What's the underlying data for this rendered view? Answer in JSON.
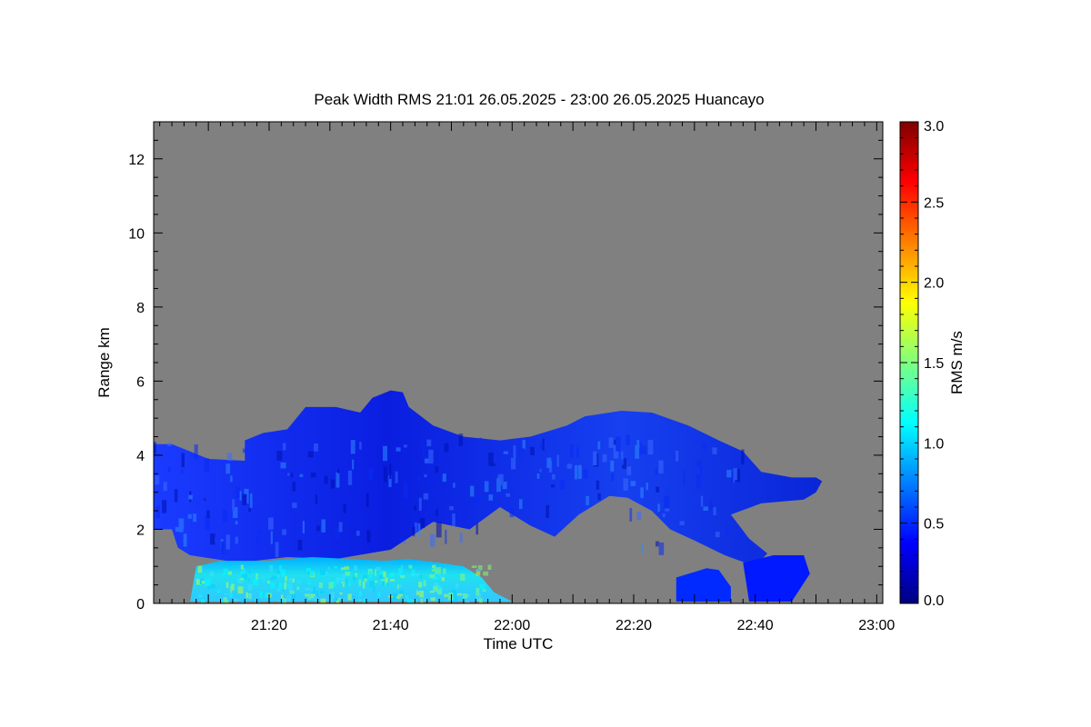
{
  "chart_data": {
    "type": "heatmap",
    "title": "Peak Width RMS   21:01 26.05.2025 - 23:00 26.05.2025 Huancayo",
    "xlabel": "Time UTC",
    "ylabel": "Range km",
    "xlim_minutes_utc": [
      1261,
      1381
    ],
    "ylim": [
      0,
      13
    ],
    "x_ticks": [
      {
        "value": 1280,
        "label": "21:20"
      },
      {
        "value": 1300,
        "label": "21:40"
      },
      {
        "value": 1320,
        "label": "22:00"
      },
      {
        "value": 1340,
        "label": "22:20"
      },
      {
        "value": 1360,
        "label": "22:40"
      },
      {
        "value": 1380,
        "label": "23:00"
      }
    ],
    "y_ticks": [
      {
        "value": 0,
        "label": "0"
      },
      {
        "value": 2,
        "label": "2"
      },
      {
        "value": 4,
        "label": "4"
      },
      {
        "value": 6,
        "label": "6"
      },
      {
        "value": 8,
        "label": "8"
      },
      {
        "value": 10,
        "label": "10"
      },
      {
        "value": 12,
        "label": "12"
      }
    ],
    "colorbar": {
      "label": "RMS m/s",
      "range": [
        0,
        3
      ],
      "ticks": [
        {
          "value": 0.0,
          "label": "0.0"
        },
        {
          "value": 0.5,
          "label": "0.5"
        },
        {
          "value": 1.0,
          "label": "1.0"
        },
        {
          "value": 1.5,
          "label": "1.5"
        },
        {
          "value": 2.0,
          "label": "2.0"
        },
        {
          "value": 2.5,
          "label": "2.5"
        },
        {
          "value": 3.0,
          "label": "3.0"
        }
      ],
      "colormap": [
        "#00007f",
        "#0000ff",
        "#007fff",
        "#00ffff",
        "#7fff7f",
        "#ffff00",
        "#ff7f00",
        "#ff0000",
        "#7f0000"
      ]
    },
    "no_data_color": "#808080",
    "echo_regions": [
      {
        "name": "main layer",
        "rms": 0.35,
        "outline": [
          [
            1261,
            2.0
          ],
          [
            1261,
            4.3
          ],
          [
            1264,
            4.3
          ],
          [
            1267,
            4.1
          ],
          [
            1270,
            3.9
          ],
          [
            1276,
            3.85
          ],
          [
            1276,
            4.4
          ],
          [
            1279,
            4.6
          ],
          [
            1283,
            4.7
          ],
          [
            1284,
            4.9
          ],
          [
            1286,
            5.3
          ],
          [
            1291,
            5.3
          ],
          [
            1295,
            5.15
          ],
          [
            1297,
            5.55
          ],
          [
            1300,
            5.75
          ],
          [
            1302,
            5.7
          ],
          [
            1303,
            5.3
          ],
          [
            1307,
            4.8
          ],
          [
            1312,
            4.5
          ],
          [
            1318,
            4.4
          ],
          [
            1323,
            4.5
          ],
          [
            1329,
            4.8
          ],
          [
            1332,
            5.05
          ],
          [
            1338,
            5.2
          ],
          [
            1343,
            5.15
          ],
          [
            1349,
            4.8
          ],
          [
            1354,
            4.4
          ],
          [
            1358,
            4.1
          ],
          [
            1361,
            3.55
          ],
          [
            1366,
            3.4
          ],
          [
            1370,
            3.4
          ],
          [
            1371,
            3.3
          ],
          [
            1370,
            3.0
          ],
          [
            1368,
            2.8
          ],
          [
            1361,
            2.7
          ],
          [
            1356,
            2.4
          ],
          [
            1359,
            1.75
          ],
          [
            1362,
            1.35
          ],
          [
            1360,
            1.0
          ],
          [
            1355,
            1.3
          ],
          [
            1350,
            1.7
          ],
          [
            1346,
            2.0
          ],
          [
            1343,
            2.5
          ],
          [
            1339,
            2.85
          ],
          [
            1336,
            2.9
          ],
          [
            1331,
            2.4
          ],
          [
            1327,
            1.8
          ],
          [
            1323,
            2.1
          ],
          [
            1318,
            2.6
          ],
          [
            1313,
            2.0
          ],
          [
            1307,
            2.2
          ],
          [
            1300,
            1.45
          ],
          [
            1291,
            1.2
          ],
          [
            1283,
            1.25
          ],
          [
            1275,
            1.1
          ],
          [
            1267,
            1.3
          ],
          [
            1265,
            1.5
          ],
          [
            1264,
            2.0
          ]
        ]
      },
      {
        "name": "low turbulent layer",
        "rms": 0.9,
        "outline": [
          [
            1267,
            0.05
          ],
          [
            1268,
            1.0
          ],
          [
            1272,
            1.15
          ],
          [
            1280,
            1.15
          ],
          [
            1287,
            1.25
          ],
          [
            1293,
            1.2
          ],
          [
            1299,
            1.15
          ],
          [
            1303,
            1.2
          ],
          [
            1308,
            1.1
          ],
          [
            1312,
            1.0
          ],
          [
            1315,
            0.7
          ],
          [
            1317,
            0.3
          ],
          [
            1320,
            0.05
          ]
        ]
      },
      {
        "name": "low echo 22:27",
        "rms": 0.5,
        "outline": [
          [
            1347,
            0.05
          ],
          [
            1347,
            0.7
          ],
          [
            1352,
            0.95
          ],
          [
            1354,
            0.9
          ],
          [
            1356,
            0.45
          ],
          [
            1356,
            0.05
          ]
        ]
      },
      {
        "name": "low echo 22:40",
        "rms": 0.45,
        "outline": [
          [
            1359,
            0.05
          ],
          [
            1358,
            1.1
          ],
          [
            1363,
            1.3
          ],
          [
            1368,
            1.3
          ],
          [
            1369,
            0.8
          ],
          [
            1366,
            0.05
          ]
        ]
      }
    ]
  }
}
